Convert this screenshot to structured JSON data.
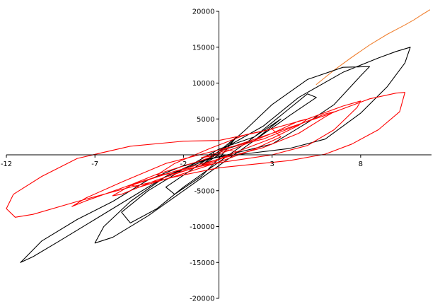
{
  "chart_data": {
    "type": "line",
    "title": "",
    "xlabel": "",
    "ylabel": "",
    "xlim": [
      -12,
      12
    ],
    "ylim": [
      -20000,
      20000
    ],
    "x_ticks": [
      -12,
      -7,
      -2,
      3,
      8
    ],
    "y_ticks": [
      20000,
      15000,
      10000,
      5000,
      0,
      -5000,
      -10000,
      -15000,
      -20000
    ],
    "x_tick_labels": [
      "-12",
      "-7",
      "-2",
      "3",
      "8"
    ],
    "y_tick_labels": [
      "20000",
      "15000",
      "10000",
      "5000",
      "0",
      "-5000",
      "-10000",
      "-15000",
      "-20000"
    ],
    "grid": false,
    "legend": "none",
    "series": [
      {
        "color": "#f08030",
        "x": [
          5.5,
          6.5,
          7.5,
          8.5,
          9.5,
          10.5,
          11,
          11.5,
          11.9
        ],
        "y": [
          9800,
          11800,
          13600,
          15300,
          16800,
          18100,
          18800,
          19600,
          20200
        ]
      },
      {
        "color": "#000000",
        "x": [
          0,
          2.5,
          4.5,
          7,
          9,
          10,
          10.8,
          10.5,
          9.5,
          8,
          6,
          4,
          2,
          0,
          -2,
          -4,
          -6,
          -8,
          -10,
          -11,
          -11.2,
          -10.5,
          -9,
          -7,
          -5,
          -3,
          -1,
          0,
          1.5,
          3,
          5,
          7,
          8.5,
          8,
          6.5,
          5,
          3,
          1,
          -1,
          -3,
          -5,
          -6.5,
          -7,
          -6,
          -4,
          -2,
          0,
          2,
          4,
          5.5,
          5,
          4,
          2,
          0,
          -2,
          -4,
          -5.5,
          -5,
          -3.5,
          -2,
          0,
          2,
          3.5,
          3,
          2,
          0,
          -1.5,
          -3,
          -2.5,
          -1,
          0,
          1,
          0.5,
          -0.5,
          -1,
          0
        ],
        "y": [
          500,
          4000,
          8000,
          11500,
          13500,
          14400,
          15000,
          12800,
          9500,
          5800,
          2200,
          900,
          300,
          -300,
          -1500,
          -3500,
          -6500,
          -9000,
          -12000,
          -14500,
          -15000,
          -14200,
          -12000,
          -9000,
          -6000,
          -3000,
          -1000,
          200,
          3500,
          7000,
          10500,
          12200,
          12300,
          11000,
          7000,
          4500,
          1500,
          300,
          -800,
          -3000,
          -6500,
          -10000,
          -12300,
          -11500,
          -8500,
          -5000,
          -1500,
          2000,
          5500,
          8000,
          8500,
          6500,
          2500,
          800,
          -2000,
          -5000,
          -8000,
          -9500,
          -7500,
          -4500,
          -1000,
          2500,
          5000,
          4000,
          2000,
          500,
          -2000,
          -4500,
          -5500,
          -3000,
          -500,
          2500,
          1500,
          -500,
          -1500,
          0
        ]
      },
      {
        "color": "#ff0000",
        "x": [
          0,
          3,
          6,
          8.5,
          10,
          10.5,
          10.2,
          9,
          7.5,
          6,
          4,
          2,
          0,
          -2,
          -5,
          -8,
          -10.5,
          -11.5,
          -12,
          -11.6,
          -10,
          -8,
          -5,
          -2,
          0,
          2.5,
          5,
          7,
          8,
          7.8,
          6.5,
          5,
          3,
          0,
          -2.5,
          -5,
          -7.5,
          -8.3,
          -7.5,
          -5.5,
          -3,
          0,
          2.5,
          4.5,
          6,
          6.5,
          6,
          4.5,
          2.5,
          0,
          -2.5,
          -5,
          -6,
          -5.5,
          -3.5,
          -1,
          1,
          3,
          4.5,
          5,
          4.5,
          3,
          1,
          -1,
          -3.5,
          -5,
          -4.5,
          -2.5,
          0,
          2,
          3.5,
          3,
          1.5,
          -0.5,
          -2.5,
          -3.5,
          -2.5,
          -0.5,
          1,
          0.5,
          -1,
          0
        ],
        "y": [
          500,
          3000,
          5500,
          7800,
          8600,
          8700,
          6000,
          3500,
          1500,
          100,
          -800,
          -1300,
          -1800,
          -2800,
          -4500,
          -6500,
          -8300,
          -8700,
          -7500,
          -5500,
          -3000,
          -500,
          1200,
          1900,
          2000,
          3300,
          5000,
          6800,
          7500,
          6600,
          3500,
          1300,
          0,
          -1100,
          -2300,
          -4200,
          -6400,
          -7200,
          -6000,
          -3800,
          -1200,
          700,
          2200,
          4200,
          5700,
          6000,
          5300,
          3000,
          1000,
          -600,
          -2300,
          -4300,
          -5700,
          -5500,
          -3500,
          -1500,
          400,
          2300,
          4100,
          5000,
          4700,
          3000,
          1000,
          -800,
          -2700,
          -4200,
          -4500,
          -3000,
          -1000,
          800,
          2500,
          3600,
          2800,
          900,
          -1200,
          -2800,
          -2600,
          -1200,
          400,
          700,
          -400,
          0
        ]
      }
    ]
  }
}
